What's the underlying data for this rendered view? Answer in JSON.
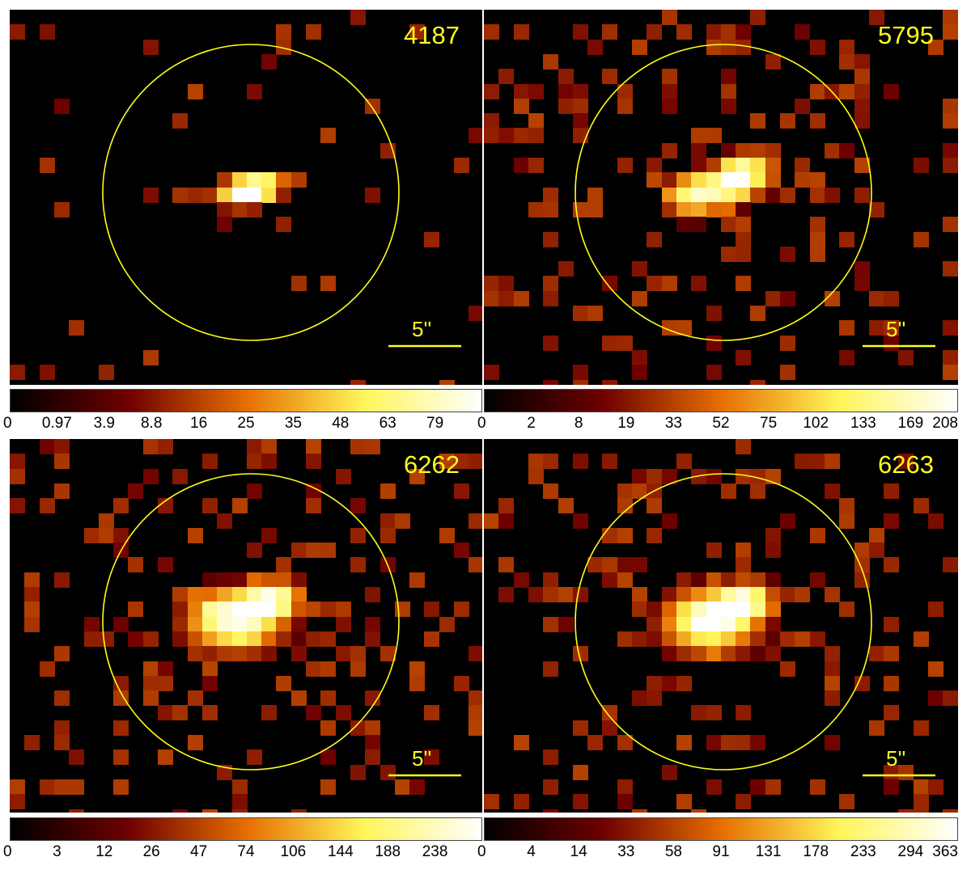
{
  "figure": {
    "panels": [
      {
        "obsid": "4187",
        "scale_label": "5''",
        "colorbar_ticks": [
          "0",
          "0.97",
          "3.9",
          "8.8",
          "16",
          "25",
          "35",
          "48",
          "63",
          "79"
        ],
        "peak": 88,
        "seed": 11,
        "noise": 0.05,
        "source": [
          {
            "dx": 0,
            "dy": 0,
            "a": 1.0,
            "sx": 0.8,
            "sy": 0.5
          },
          {
            "dx": -1.2,
            "dy": 0.1,
            "a": 0.45,
            "sx": 1.0,
            "sy": 0.6
          },
          {
            "dx": 0.9,
            "dy": -0.6,
            "a": 0.6,
            "sx": 1.0,
            "sy": 0.5
          }
        ]
      },
      {
        "obsid": "5795",
        "scale_label": "5''",
        "colorbar_ticks": [
          "0",
          "2",
          "8",
          "19",
          "33",
          "52",
          "75",
          "102",
          "133",
          "169",
          "208"
        ],
        "peak": 208,
        "seed": 23,
        "noise": 0.18,
        "source": [
          {
            "dx": 0.6,
            "dy": -1.0,
            "a": 1.0,
            "sx": 0.7,
            "sy": 0.6
          },
          {
            "dx": -1.0,
            "dy": -0.2,
            "a": 0.65,
            "sx": 1.3,
            "sy": 0.8
          },
          {
            "dx": 1.8,
            "dy": -1.4,
            "a": 0.6,
            "sx": 1.0,
            "sy": 0.9
          },
          {
            "dx": -2.4,
            "dy": 0.4,
            "a": 0.45,
            "sx": 1.0,
            "sy": 0.8
          }
        ]
      },
      {
        "obsid": "6262",
        "scale_label": "5''",
        "colorbar_ticks": [
          "0",
          "3",
          "12",
          "26",
          "47",
          "74",
          "106",
          "144",
          "188",
          "238"
        ],
        "peak": 280,
        "seed": 37,
        "noise": 0.2,
        "source": [
          {
            "dx": 0.5,
            "dy": -1.0,
            "a": 1.0,
            "sx": 0.9,
            "sy": 0.6
          },
          {
            "dx": -1.4,
            "dy": -0.6,
            "a": 0.75,
            "sx": 1.6,
            "sy": 1.0
          },
          {
            "dx": 1.8,
            "dy": -1.6,
            "a": 0.7,
            "sx": 1.0,
            "sy": 0.8
          },
          {
            "dx": -1.0,
            "dy": 0.7,
            "a": 0.4,
            "sx": 2.0,
            "sy": 1.0
          }
        ]
      },
      {
        "obsid": "6263",
        "scale_label": "5''",
        "colorbar_ticks": [
          "0",
          "4",
          "14",
          "33",
          "58",
          "91",
          "131",
          "178",
          "233",
          "294",
          "363"
        ],
        "peak": 363,
        "seed": 51,
        "noise": 0.2,
        "source": [
          {
            "dx": 0.5,
            "dy": -0.9,
            "a": 1.0,
            "sx": 0.9,
            "sy": 0.6
          },
          {
            "dx": -1.2,
            "dy": -0.5,
            "a": 0.75,
            "sx": 1.6,
            "sy": 1.0
          },
          {
            "dx": 1.6,
            "dy": -1.5,
            "a": 0.7,
            "sx": 1.0,
            "sy": 0.8
          },
          {
            "dx": -1.0,
            "dy": 0.8,
            "a": 0.4,
            "sx": 2.0,
            "sy": 1.0
          }
        ]
      }
    ]
  }
}
